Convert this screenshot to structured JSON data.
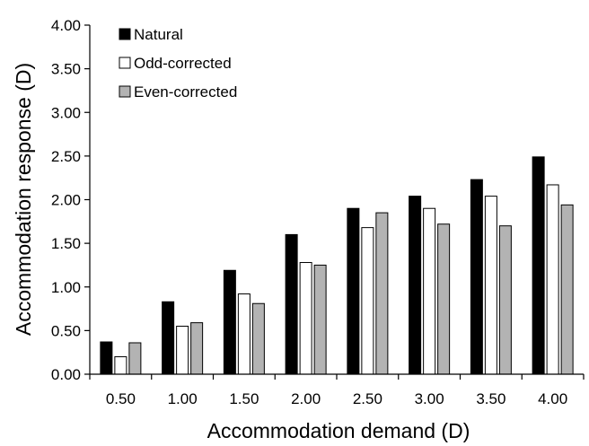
{
  "chart_data": {
    "type": "bar",
    "title": "",
    "xlabel": "Accommodation demand (D)",
    "ylabel": "Accommodation response (D)",
    "categories": [
      "0.50",
      "1.00",
      "1.50",
      "2.00",
      "2.50",
      "3.00",
      "3.50",
      "4.00"
    ],
    "ylim": [
      0,
      4
    ],
    "yticks": [
      "0.00",
      "0.50",
      "1.00",
      "1.50",
      "2.00",
      "2.50",
      "3.00",
      "3.50",
      "4.00"
    ],
    "grid": false,
    "legend_position": "top-left",
    "series": [
      {
        "name": "Natural",
        "color": "#000000",
        "values": [
          0.37,
          0.83,
          1.19,
          1.6,
          1.9,
          2.04,
          2.23,
          2.49
        ]
      },
      {
        "name": "Odd-corrected",
        "color": "#ffffff",
        "values": [
          0.2,
          0.55,
          0.92,
          1.28,
          1.68,
          1.9,
          2.04,
          2.17
        ]
      },
      {
        "name": "Even-corrected",
        "color": "#b3b3b3",
        "values": [
          0.36,
          0.59,
          0.81,
          1.25,
          1.85,
          1.72,
          1.7,
          1.94
        ]
      }
    ]
  }
}
